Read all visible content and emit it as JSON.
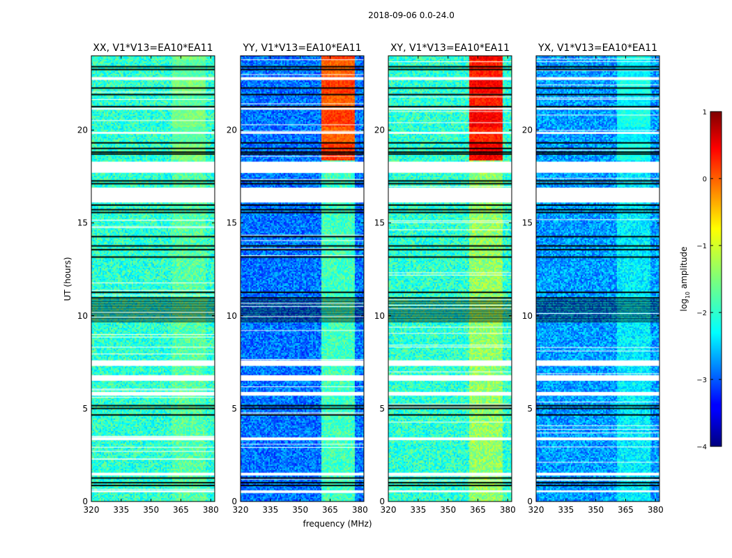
{
  "chart_data": {
    "type": "heatmap",
    "suptitle": "2018-09-06 0.0-24.0",
    "xlabel": "frequency (MHz)",
    "ylabel": "UT (hours)",
    "xlim": [
      320,
      382
    ],
    "ylim": [
      0,
      24
    ],
    "xticks": [
      320,
      335,
      350,
      365,
      380
    ],
    "yticks": [
      0,
      5,
      10,
      15,
      20
    ],
    "colorbar": {
      "label_prefix": "log",
      "label_sub": "10",
      "label_suffix": " amplitude",
      "range": [
        -4,
        1
      ],
      "ticks": [
        1,
        0,
        -1,
        -2,
        -3,
        -4
      ],
      "tick_labels": [
        "1",
        "0",
        "−1",
        "−2",
        "−3",
        "−4"
      ],
      "colormap": "jet"
    },
    "panels": [
      {
        "title": "XX, V1*V13=EA10*EA11",
        "base_level": -1.9,
        "rfi_level": -1.7,
        "rfi_band": [
          360,
          377
        ],
        "strong_level": -1.5
      },
      {
        "title": "YY, V1*V13=EA10*EA11",
        "base_level": -2.8,
        "rfi_level": -1.8,
        "rfi_band": [
          360,
          377
        ],
        "strong_level": 0.1
      },
      {
        "title": "XY, V1*V13=EA10*EA11",
        "base_level": -1.9,
        "rfi_level": -1.4,
        "rfi_band": [
          360,
          377
        ],
        "strong_level": 0.4
      },
      {
        "title": "YX, V1*V13=EA10*EA11",
        "base_level": -2.6,
        "rfi_level": -2.2,
        "rfi_band": [
          360,
          377
        ],
        "strong_level": -2.0
      }
    ],
    "strong_rfi_ut_range": [
      18.4,
      24.0
    ],
    "flagged_white_ut_ranges": [
      [
        16.1,
        16.9
      ],
      [
        17.7,
        18.3
      ],
      [
        7.3,
        7.6
      ],
      [
        6.5,
        6.8
      ],
      [
        5.7,
        5.9
      ],
      [
        3.3,
        3.45
      ],
      [
        1.4,
        1.55
      ],
      [
        0.5,
        0.6
      ],
      [
        22.7,
        22.85
      ],
      [
        21.1,
        21.2
      ],
      [
        19.8,
        19.9
      ]
    ],
    "black_line_ut": [
      0.9,
      1.05,
      1.3,
      4.7,
      5.05,
      5.2,
      11.0,
      11.3,
      13.2,
      13.6,
      13.8,
      14.3,
      15.6,
      15.75,
      16.0,
      17.15,
      17.3,
      18.75,
      18.85,
      19.05,
      19.35,
      21.3,
      21.95,
      22.3,
      23.3,
      23.45
    ],
    "dense_black_ut_range": [
      9.7,
      10.9
    ]
  }
}
